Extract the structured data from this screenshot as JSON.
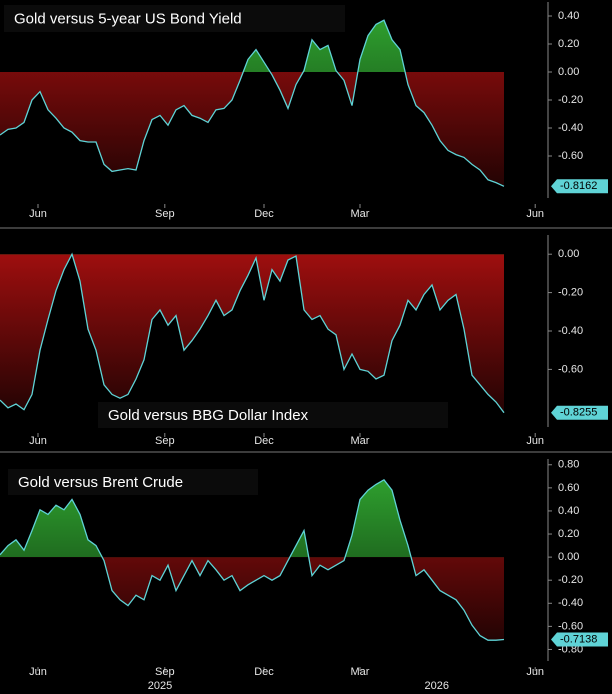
{
  "chart_data": [
    {
      "type": "line",
      "title": "Gold versus 5-year US Bond Yield",
      "line_color": "#5fd3d6",
      "positive_color": "#2e9e2e",
      "negative_color": "#b01010",
      "values": [
        -0.45,
        -0.41,
        -0.4,
        -0.36,
        -0.2,
        -0.14,
        -0.27,
        -0.33,
        -0.4,
        -0.43,
        -0.49,
        -0.5,
        -0.5,
        -0.66,
        -0.71,
        -0.7,
        -0.69,
        -0.7,
        -0.49,
        -0.34,
        -0.31,
        -0.38,
        -0.27,
        -0.24,
        -0.31,
        -0.33,
        -0.36,
        -0.27,
        -0.26,
        -0.2,
        -0.06,
        0.09,
        0.16,
        0.07,
        -0.02,
        -0.13,
        -0.26,
        -0.09,
        0.01,
        0.23,
        0.16,
        0.19,
        0.01,
        -0.06,
        -0.24,
        0.09,
        0.26,
        0.34,
        0.37,
        0.23,
        0.16,
        -0.09,
        -0.24,
        -0.29,
        -0.38,
        -0.49,
        -0.56,
        -0.59,
        -0.61,
        -0.66,
        -0.7,
        -0.77,
        -0.79,
        -0.8162
      ],
      "xlim": [
        0,
        68.5
      ],
      "xticks": [
        {
          "value": 4.75,
          "label": "Jun"
        },
        {
          "value": 20.6,
          "label": "Sep"
        },
        {
          "value": 33,
          "label": "Dec"
        },
        {
          "value": 45,
          "label": "Mar"
        },
        {
          "value": 66.9,
          "label": "Jun"
        }
      ],
      "ylim": [
        -0.9,
        0.5
      ],
      "yticks": [
        {
          "value": 0.4,
          "label": "0.40"
        },
        {
          "value": 0.2,
          "label": "0.20"
        },
        {
          "value": 0,
          "label": "0.00"
        },
        {
          "value": -0.2,
          "label": "-0.20"
        },
        {
          "value": -0.4,
          "label": "-0.40"
        },
        {
          "value": -0.6,
          "label": "-0.60"
        }
      ]
    },
    {
      "type": "line",
      "title": "Gold versus BBG Dollar Index",
      "line_color": "#5fd3d6",
      "positive_color": "#2e9e2e",
      "negative_color": "#b01010",
      "values": [
        -0.76,
        -0.8,
        -0.78,
        -0.81,
        -0.73,
        -0.5,
        -0.34,
        -0.19,
        -0.08,
        0.0,
        -0.14,
        -0.39,
        -0.5,
        -0.68,
        -0.73,
        -0.75,
        -0.73,
        -0.65,
        -0.55,
        -0.34,
        -0.29,
        -0.37,
        -0.32,
        -0.5,
        -0.45,
        -0.39,
        -0.32,
        -0.24,
        -0.32,
        -0.29,
        -0.19,
        -0.11,
        -0.02,
        -0.24,
        -0.08,
        -0.14,
        -0.03,
        -0.01,
        -0.29,
        -0.34,
        -0.32,
        -0.39,
        -0.42,
        -0.6,
        -0.52,
        -0.6,
        -0.61,
        -0.65,
        -0.63,
        -0.45,
        -0.37,
        -0.24,
        -0.29,
        -0.21,
        -0.16,
        -0.29,
        -0.24,
        -0.21,
        -0.39,
        -0.63,
        -0.68,
        -0.73,
        -0.77,
        -0.8255
      ],
      "xlim": [
        0,
        68.5
      ],
      "xticks": [
        {
          "value": 4.75,
          "label": "Jun"
        },
        {
          "value": 20.6,
          "label": "Sep"
        },
        {
          "value": 33,
          "label": "Dec"
        },
        {
          "value": 45,
          "label": "Mar"
        },
        {
          "value": 66.9,
          "label": "Jun"
        }
      ],
      "ylim": [
        -0.9,
        0.1
      ],
      "yticks": [
        {
          "value": 0,
          "label": "0.00"
        },
        {
          "value": -0.2,
          "label": "-0.20"
        },
        {
          "value": -0.4,
          "label": "-0.40"
        },
        {
          "value": -0.6,
          "label": "-0.60"
        }
      ]
    },
    {
      "type": "line",
      "title": "Gold versus Brent Crude",
      "line_color": "#5fd3d6",
      "positive_color": "#2e9e2e",
      "negative_color": "#b01010",
      "values": [
        0.02,
        0.1,
        0.15,
        0.06,
        0.23,
        0.41,
        0.37,
        0.45,
        0.41,
        0.5,
        0.37,
        0.15,
        0.1,
        -0.03,
        -0.29,
        -0.37,
        -0.42,
        -0.33,
        -0.37,
        -0.16,
        -0.2,
        -0.07,
        -0.29,
        -0.16,
        -0.03,
        -0.16,
        -0.03,
        -0.11,
        -0.2,
        -0.16,
        -0.29,
        -0.24,
        -0.2,
        -0.16,
        -0.2,
        -0.16,
        -0.03,
        0.1,
        0.23,
        -0.16,
        -0.07,
        -0.11,
        -0.07,
        -0.03,
        0.19,
        0.5,
        0.58,
        0.63,
        0.67,
        0.58,
        0.32,
        0.1,
        -0.16,
        -0.11,
        -0.2,
        -0.29,
        -0.33,
        -0.37,
        -0.46,
        -0.59,
        -0.68,
        -0.72,
        -0.72,
        -0.7138
      ],
      "xlim": [
        0,
        68.5
      ],
      "xticks": [
        {
          "value": 4.75,
          "label": "Jun"
        },
        {
          "value": 20.6,
          "label": "Sep"
        },
        {
          "value": 33,
          "label": "Dec"
        },
        {
          "value": 45,
          "label": "Mar"
        },
        {
          "value": 66.9,
          "label": "Jun"
        }
      ],
      "year_labels": [
        {
          "value": 20,
          "label": "2025"
        },
        {
          "value": 54.6,
          "label": "2026"
        }
      ],
      "ylim": [
        -0.9,
        0.85
      ],
      "yticks": [
        {
          "value": 0.8,
          "label": "0.80"
        },
        {
          "value": 0.6,
          "label": "0.60"
        },
        {
          "value": 0.4,
          "label": "0.40"
        },
        {
          "value": 0.2,
          "label": "0.20"
        },
        {
          "value": 0,
          "label": "0.00"
        },
        {
          "value": -0.2,
          "label": "-0.20"
        },
        {
          "value": -0.4,
          "label": "-0.40"
        },
        {
          "value": -0.6,
          "label": "-0.60"
        },
        {
          "value": -0.8,
          "label": "-0.80"
        }
      ]
    }
  ]
}
